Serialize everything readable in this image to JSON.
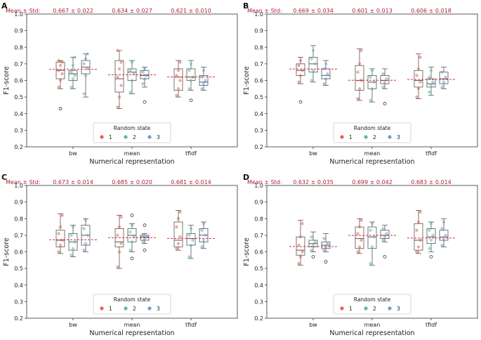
{
  "figure": {
    "mean_std_label": "Mean ± Std:",
    "legend_title": "Random state",
    "legend_items": [
      "1",
      "2",
      "3"
    ],
    "colors": {
      "s1": "#e8604c",
      "s2": "#52bfa5",
      "s3": "#6aa0d6",
      "mean_line": "#d62f3f",
      "box": "#555555",
      "text_red": "#b22033"
    }
  },
  "chart_data": [
    {
      "type": "box",
      "panel": "A",
      "xlabel": "Numerical representation",
      "ylabel": "F1-score",
      "ylim": [
        0.2,
        1.0
      ],
      "yticks": [
        "0.2",
        "0.3",
        "0.4",
        "0.5",
        "0.6",
        "0.7",
        "0.8",
        "0.9",
        "1.0"
      ],
      "categories": [
        "bw",
        "mean",
        "tfidf"
      ],
      "mean_std": [
        "0.667 ± 0.022",
        "0.634 ± 0.027",
        "0.621 ± 0.010"
      ],
      "means": [
        0.667,
        0.634,
        0.621
      ],
      "series": [
        {
          "name": "1",
          "boxes": [
            {
              "q1": 0.61,
              "med": 0.66,
              "q3": 0.71,
              "wlo": 0.55,
              "whi": 0.72,
              "fl": [
                0.43
              ],
              "pts": [
                0.56,
                0.6,
                0.64,
                0.66,
                0.69,
                0.71,
                0.72
              ]
            },
            {
              "q1": 0.53,
              "med": 0.61,
              "q3": 0.72,
              "wlo": 0.43,
              "whi": 0.78,
              "fl": [],
              "pts": [
                0.44,
                0.5,
                0.57,
                0.62,
                0.67,
                0.71,
                0.78
              ]
            },
            {
              "q1": 0.54,
              "med": 0.62,
              "q3": 0.67,
              "wlo": 0.5,
              "whi": 0.72,
              "fl": [],
              "pts": [
                0.51,
                0.55,
                0.6,
                0.63,
                0.66,
                0.71
              ]
            }
          ]
        },
        {
          "name": "2",
          "boxes": [
            {
              "q1": 0.6,
              "med": 0.64,
              "q3": 0.66,
              "wlo": 0.55,
              "whi": 0.74,
              "fl": [],
              "pts": [
                0.56,
                0.61,
                0.63,
                0.65,
                0.69,
                0.74
              ]
            },
            {
              "q1": 0.6,
              "med": 0.65,
              "q3": 0.67,
              "wlo": 0.52,
              "whi": 0.72,
              "fl": [],
              "pts": [
                0.53,
                0.6,
                0.64,
                0.66,
                0.71
              ]
            },
            {
              "q1": 0.6,
              "med": 0.62,
              "q3": 0.67,
              "wlo": 0.54,
              "whi": 0.72,
              "fl": [
                0.48
              ],
              "pts": [
                0.55,
                0.6,
                0.62,
                0.66,
                0.7
              ]
            }
          ]
        },
        {
          "name": "3",
          "boxes": [
            {
              "q1": 0.64,
              "med": 0.68,
              "q3": 0.72,
              "wlo": 0.5,
              "whi": 0.76,
              "fl": [],
              "pts": [
                0.52,
                0.63,
                0.67,
                0.7,
                0.73,
                0.76
              ]
            },
            {
              "q1": 0.61,
              "med": 0.63,
              "q3": 0.66,
              "wlo": 0.56,
              "whi": 0.68,
              "fl": [
                0.47
              ],
              "pts": [
                0.58,
                0.61,
                0.63,
                0.65,
                0.67
              ]
            },
            {
              "q1": 0.57,
              "med": 0.59,
              "q3": 0.63,
              "wlo": 0.54,
              "whi": 0.68,
              "fl": [],
              "pts": [
                0.55,
                0.58,
                0.6,
                0.62,
                0.66
              ]
            }
          ]
        }
      ]
    },
    {
      "type": "box",
      "panel": "B",
      "xlabel": "Numerical representation",
      "ylabel": "F1-score",
      "ylim": [
        0.2,
        1.0
      ],
      "yticks": [
        "0.2",
        "0.3",
        "0.4",
        "0.5",
        "0.6",
        "0.7",
        "0.8",
        "0.9",
        "1.0"
      ],
      "categories": [
        "bw",
        "mean",
        "tfidf"
      ],
      "mean_std": [
        "0.669 ± 0.034",
        "0.601 ± 0.013",
        "0.606 ± 0.018"
      ],
      "means": [
        0.669,
        0.601,
        0.606
      ],
      "series": [
        {
          "name": "1",
          "boxes": [
            {
              "q1": 0.63,
              "med": 0.66,
              "q3": 0.7,
              "wlo": 0.58,
              "whi": 0.74,
              "fl": [
                0.47
              ],
              "pts": [
                0.59,
                0.63,
                0.66,
                0.69,
                0.72
              ]
            },
            {
              "q1": 0.54,
              "med": 0.6,
              "q3": 0.69,
              "wlo": 0.48,
              "whi": 0.79,
              "fl": [],
              "pts": [
                0.49,
                0.55,
                0.6,
                0.65,
                0.7,
                0.78
              ]
            },
            {
              "q1": 0.56,
              "med": 0.6,
              "q3": 0.66,
              "wlo": 0.49,
              "whi": 0.76,
              "fl": [],
              "pts": [
                0.5,
                0.55,
                0.59,
                0.63,
                0.67,
                0.74
              ]
            }
          ]
        },
        {
          "name": "2",
          "boxes": [
            {
              "q1": 0.65,
              "med": 0.7,
              "q3": 0.74,
              "wlo": 0.59,
              "whi": 0.81,
              "fl": [],
              "pts": [
                0.6,
                0.66,
                0.7,
                0.73,
                0.78
              ]
            },
            {
              "q1": 0.55,
              "med": 0.59,
              "q3": 0.63,
              "wlo": 0.47,
              "whi": 0.67,
              "fl": [],
              "pts": [
                0.48,
                0.55,
                0.59,
                0.62,
                0.66
              ]
            },
            {
              "q1": 0.56,
              "med": 0.58,
              "q3": 0.61,
              "wlo": 0.51,
              "whi": 0.68,
              "fl": [],
              "pts": [
                0.53,
                0.57,
                0.59,
                0.62,
                0.66
              ]
            }
          ]
        },
        {
          "name": "3",
          "boxes": [
            {
              "q1": 0.61,
              "med": 0.63,
              "q3": 0.67,
              "wlo": 0.57,
              "whi": 0.72,
              "fl": [],
              "pts": [
                0.58,
                0.61,
                0.64,
                0.67,
                0.7
              ]
            },
            {
              "q1": 0.58,
              "med": 0.6,
              "q3": 0.63,
              "wlo": 0.55,
              "whi": 0.67,
              "fl": [
                0.46
              ],
              "pts": [
                0.56,
                0.59,
                0.61,
                0.64
              ]
            },
            {
              "q1": 0.58,
              "med": 0.61,
              "q3": 0.65,
              "wlo": 0.55,
              "whi": 0.68,
              "fl": [],
              "pts": [
                0.56,
                0.59,
                0.62,
                0.65
              ]
            }
          ]
        }
      ]
    },
    {
      "type": "box",
      "panel": "C",
      "xlabel": "Numerical representation",
      "ylabel": "F1-score",
      "ylim": [
        0.2,
        1.0
      ],
      "yticks": [
        "0.2",
        "0.3",
        "0.4",
        "0.5",
        "0.6",
        "0.7",
        "0.8",
        "0.9",
        "1.0"
      ],
      "categories": [
        "bw",
        "mean",
        "tfidf"
      ],
      "mean_std": [
        "0.673 ± 0.014",
        "0.685 ± 0.020",
        "0.681 ± 0.014"
      ],
      "means": [
        0.673,
        0.685,
        0.681
      ],
      "series": [
        {
          "name": "1",
          "boxes": [
            {
              "q1": 0.63,
              "med": 0.67,
              "q3": 0.73,
              "wlo": 0.59,
              "whi": 0.83,
              "fl": [],
              "pts": [
                0.6,
                0.64,
                0.67,
                0.71,
                0.75,
                0.82
              ]
            },
            {
              "q1": 0.63,
              "med": 0.66,
              "q3": 0.74,
              "wlo": 0.5,
              "whi": 0.82,
              "fl": [],
              "pts": [
                0.51,
                0.6,
                0.65,
                0.7,
                0.75,
                0.81
              ]
            },
            {
              "q1": 0.63,
              "med": 0.67,
              "q3": 0.78,
              "wlo": 0.61,
              "whi": 0.85,
              "fl": [],
              "pts": [
                0.62,
                0.65,
                0.69,
                0.75,
                0.8,
                0.84
              ]
            }
          ]
        },
        {
          "name": "2",
          "boxes": [
            {
              "q1": 0.61,
              "med": 0.66,
              "q3": 0.71,
              "wlo": 0.57,
              "whi": 0.76,
              "fl": [],
              "pts": [
                0.58,
                0.62,
                0.66,
                0.7,
                0.75
              ]
            },
            {
              "q1": 0.66,
              "med": 0.7,
              "q3": 0.74,
              "wlo": 0.6,
              "whi": 0.77,
              "fl": [
                0.82,
                0.56
              ],
              "pts": [
                0.61,
                0.66,
                0.69,
                0.72,
                0.76
              ]
            },
            {
              "q1": 0.64,
              "med": 0.68,
              "q3": 0.71,
              "wlo": 0.56,
              "whi": 0.76,
              "fl": [],
              "pts": [
                0.57,
                0.64,
                0.67,
                0.7,
                0.74
              ]
            }
          ]
        },
        {
          "name": "3",
          "boxes": [
            {
              "q1": 0.64,
              "med": 0.7,
              "q3": 0.76,
              "wlo": 0.6,
              "whi": 0.8,
              "fl": [],
              "pts": [
                0.61,
                0.65,
                0.7,
                0.74,
                0.79
              ]
            },
            {
              "q1": 0.67,
              "med": 0.69,
              "q3": 0.7,
              "wlo": 0.65,
              "whi": 0.71,
              "fl": [
                0.76,
                0.61
              ],
              "pts": [
                0.66,
                0.68,
                0.69,
                0.7
              ]
            },
            {
              "q1": 0.66,
              "med": 0.7,
              "q3": 0.74,
              "wlo": 0.62,
              "whi": 0.78,
              "fl": [],
              "pts": [
                0.63,
                0.67,
                0.7,
                0.73,
                0.77
              ]
            }
          ]
        }
      ]
    },
    {
      "type": "box",
      "panel": "D",
      "xlabel": "Numerical representation",
      "ylabel": "F1-score",
      "ylim": [
        0.2,
        1.0
      ],
      "yticks": [
        "0.2",
        "0.3",
        "0.4",
        "0.5",
        "0.6",
        "0.7",
        "0.8",
        "0.9",
        "1.0"
      ],
      "categories": [
        "bw",
        "mean",
        "tfidf"
      ],
      "mean_std": [
        "0.632 ± 0.035",
        "0.699 ± 0.042",
        "0.683  ± 0.014"
      ],
      "means": [
        0.632,
        0.699,
        0.683
      ],
      "series": [
        {
          "name": "1",
          "boxes": [
            {
              "q1": 0.58,
              "med": 0.61,
              "q3": 0.69,
              "wlo": 0.52,
              "whi": 0.79,
              "fl": [],
              "pts": [
                0.53,
                0.57,
                0.6,
                0.64,
                0.69,
                0.77
              ]
            },
            {
              "q1": 0.62,
              "med": 0.68,
              "q3": 0.75,
              "wlo": 0.59,
              "whi": 0.8,
              "fl": [],
              "pts": [
                0.6,
                0.63,
                0.67,
                0.71,
                0.75,
                0.79
              ]
            },
            {
              "q1": 0.61,
              "med": 0.67,
              "q3": 0.77,
              "wlo": 0.59,
              "whi": 0.85,
              "fl": [],
              "pts": [
                0.6,
                0.63,
                0.67,
                0.73,
                0.78,
                0.84
              ]
            }
          ]
        },
        {
          "name": "2",
          "boxes": [
            {
              "q1": 0.63,
              "med": 0.65,
              "q3": 0.67,
              "wlo": 0.6,
              "whi": 0.72,
              "fl": [
                0.57
              ],
              "pts": [
                0.61,
                0.64,
                0.66,
                0.69
              ]
            },
            {
              "q1": 0.62,
              "med": 0.69,
              "q3": 0.75,
              "wlo": 0.52,
              "whi": 0.78,
              "fl": [],
              "pts": [
                0.53,
                0.63,
                0.69,
                0.73,
                0.77
              ]
            },
            {
              "q1": 0.65,
              "med": 0.69,
              "q3": 0.74,
              "wlo": 0.6,
              "whi": 0.78,
              "fl": [
                0.57
              ],
              "pts": [
                0.62,
                0.67,
                0.7,
                0.73,
                0.77
              ]
            }
          ]
        },
        {
          "name": "3",
          "boxes": [
            {
              "q1": 0.62,
              "med": 0.64,
              "q3": 0.66,
              "wlo": 0.6,
              "whi": 0.71,
              "fl": [
                0.54
              ],
              "pts": [
                0.61,
                0.63,
                0.65,
                0.68
              ]
            },
            {
              "q1": 0.68,
              "med": 0.7,
              "q3": 0.73,
              "wlo": 0.66,
              "whi": 0.76,
              "fl": [
                0.57
              ],
              "pts": [
                0.67,
                0.69,
                0.71,
                0.74
              ]
            },
            {
              "q1": 0.67,
              "med": 0.69,
              "q3": 0.73,
              "wlo": 0.63,
              "whi": 0.8,
              "fl": [],
              "pts": [
                0.64,
                0.67,
                0.7,
                0.74,
                0.78
              ]
            }
          ]
        }
      ]
    }
  ]
}
